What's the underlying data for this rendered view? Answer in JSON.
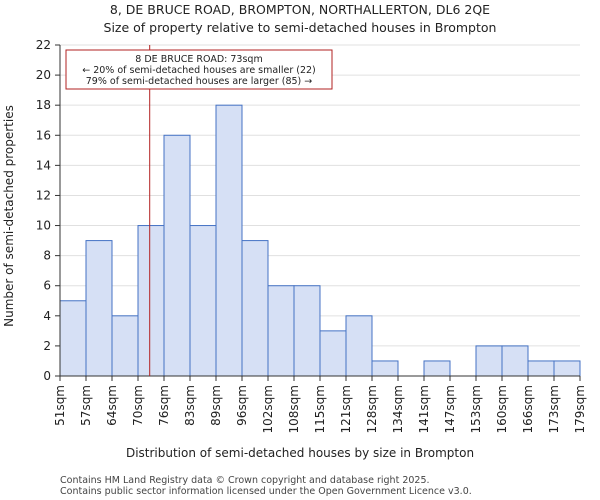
{
  "chart_data": {
    "type": "bar",
    "title_line1": "8, DE BRUCE ROAD, BROMPTON, NORTHALLERTON, DL6 2QE",
    "title_line2": "Size of property relative to semi-detached houses in Brompton",
    "xlabel": "Distribution of semi-detached houses by size in Brompton",
    "ylabel": "Number of semi-detached properties",
    "bin_edges": [
      "51sqm",
      "57sqm",
      "64sqm",
      "70sqm",
      "76sqm",
      "83sqm",
      "89sqm",
      "96sqm",
      "102sqm",
      "108sqm",
      "115sqm",
      "121sqm",
      "128sqm",
      "134sqm",
      "141sqm",
      "147sqm",
      "153sqm",
      "160sqm",
      "166sqm",
      "173sqm",
      "179sqm"
    ],
    "values": [
      5,
      9,
      4,
      10,
      16,
      10,
      18,
      9,
      6,
      6,
      3,
      4,
      1,
      0,
      1,
      0,
      2,
      2,
      1,
      1
    ],
    "ylim": [
      0,
      22
    ],
    "yticks": [
      0,
      2,
      4,
      6,
      8,
      10,
      12,
      14,
      16,
      18,
      20,
      22
    ],
    "property_bin_position": 3.45,
    "annotation": {
      "line1": "8 DE BRUCE ROAD: 73sqm",
      "line2": "← 20% of semi-detached houses are smaller (22)",
      "line3": "79% of semi-detached houses are larger (85) →"
    },
    "colors": {
      "bar_fill": "#d6e0f5",
      "bar_edge": "#4472c4",
      "marker": "#b22222",
      "grid": "#e0e0e0"
    }
  },
  "footer": {
    "line1": "Contains HM Land Registry data © Crown copyright and database right 2025.",
    "line2": "Contains public sector information licensed under the Open Government Licence v3.0."
  }
}
